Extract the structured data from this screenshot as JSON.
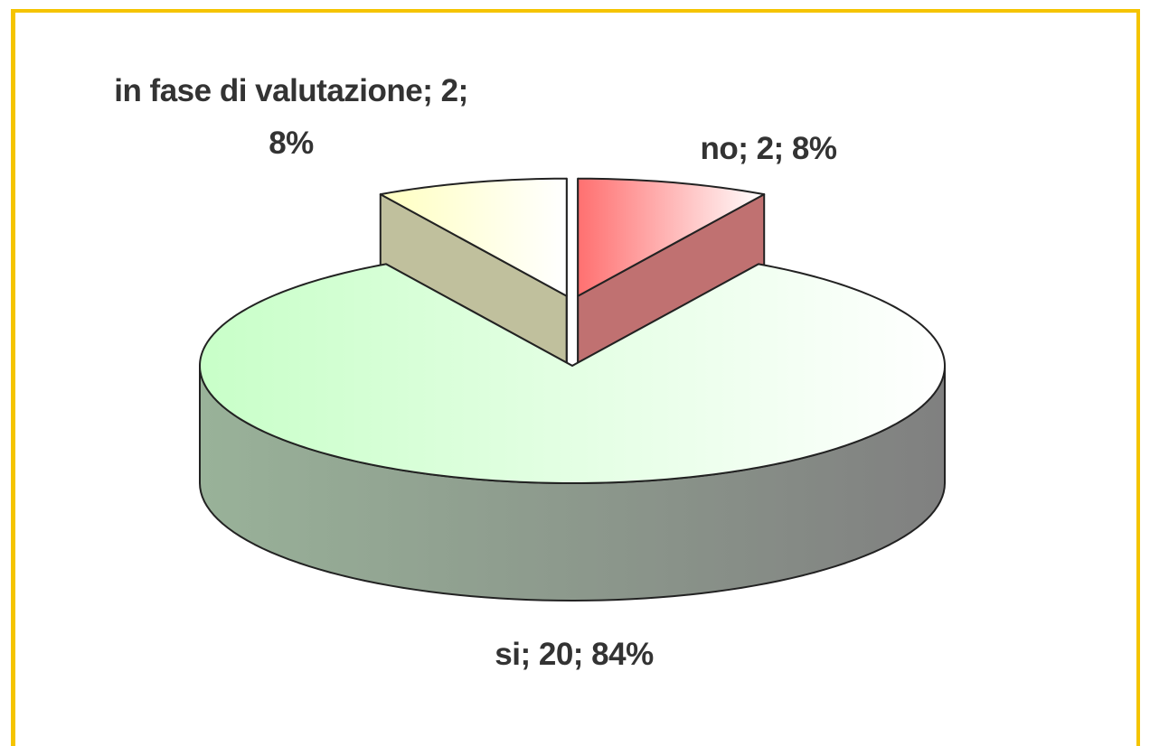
{
  "chart_data": {
    "type": "pie3d",
    "categories": [
      "no",
      "si",
      "in fase di valutazione"
    ],
    "values": [
      2,
      20,
      2
    ],
    "value_labels": [
      "no; 2; 8%",
      "si; 20; 84%",
      "in fase di valutazione; 2; 8%"
    ],
    "colors": [
      "#ff7070",
      "#c8ffc8",
      "#ffffc0"
    ],
    "exploded": [
      true,
      false,
      true
    ]
  }
}
